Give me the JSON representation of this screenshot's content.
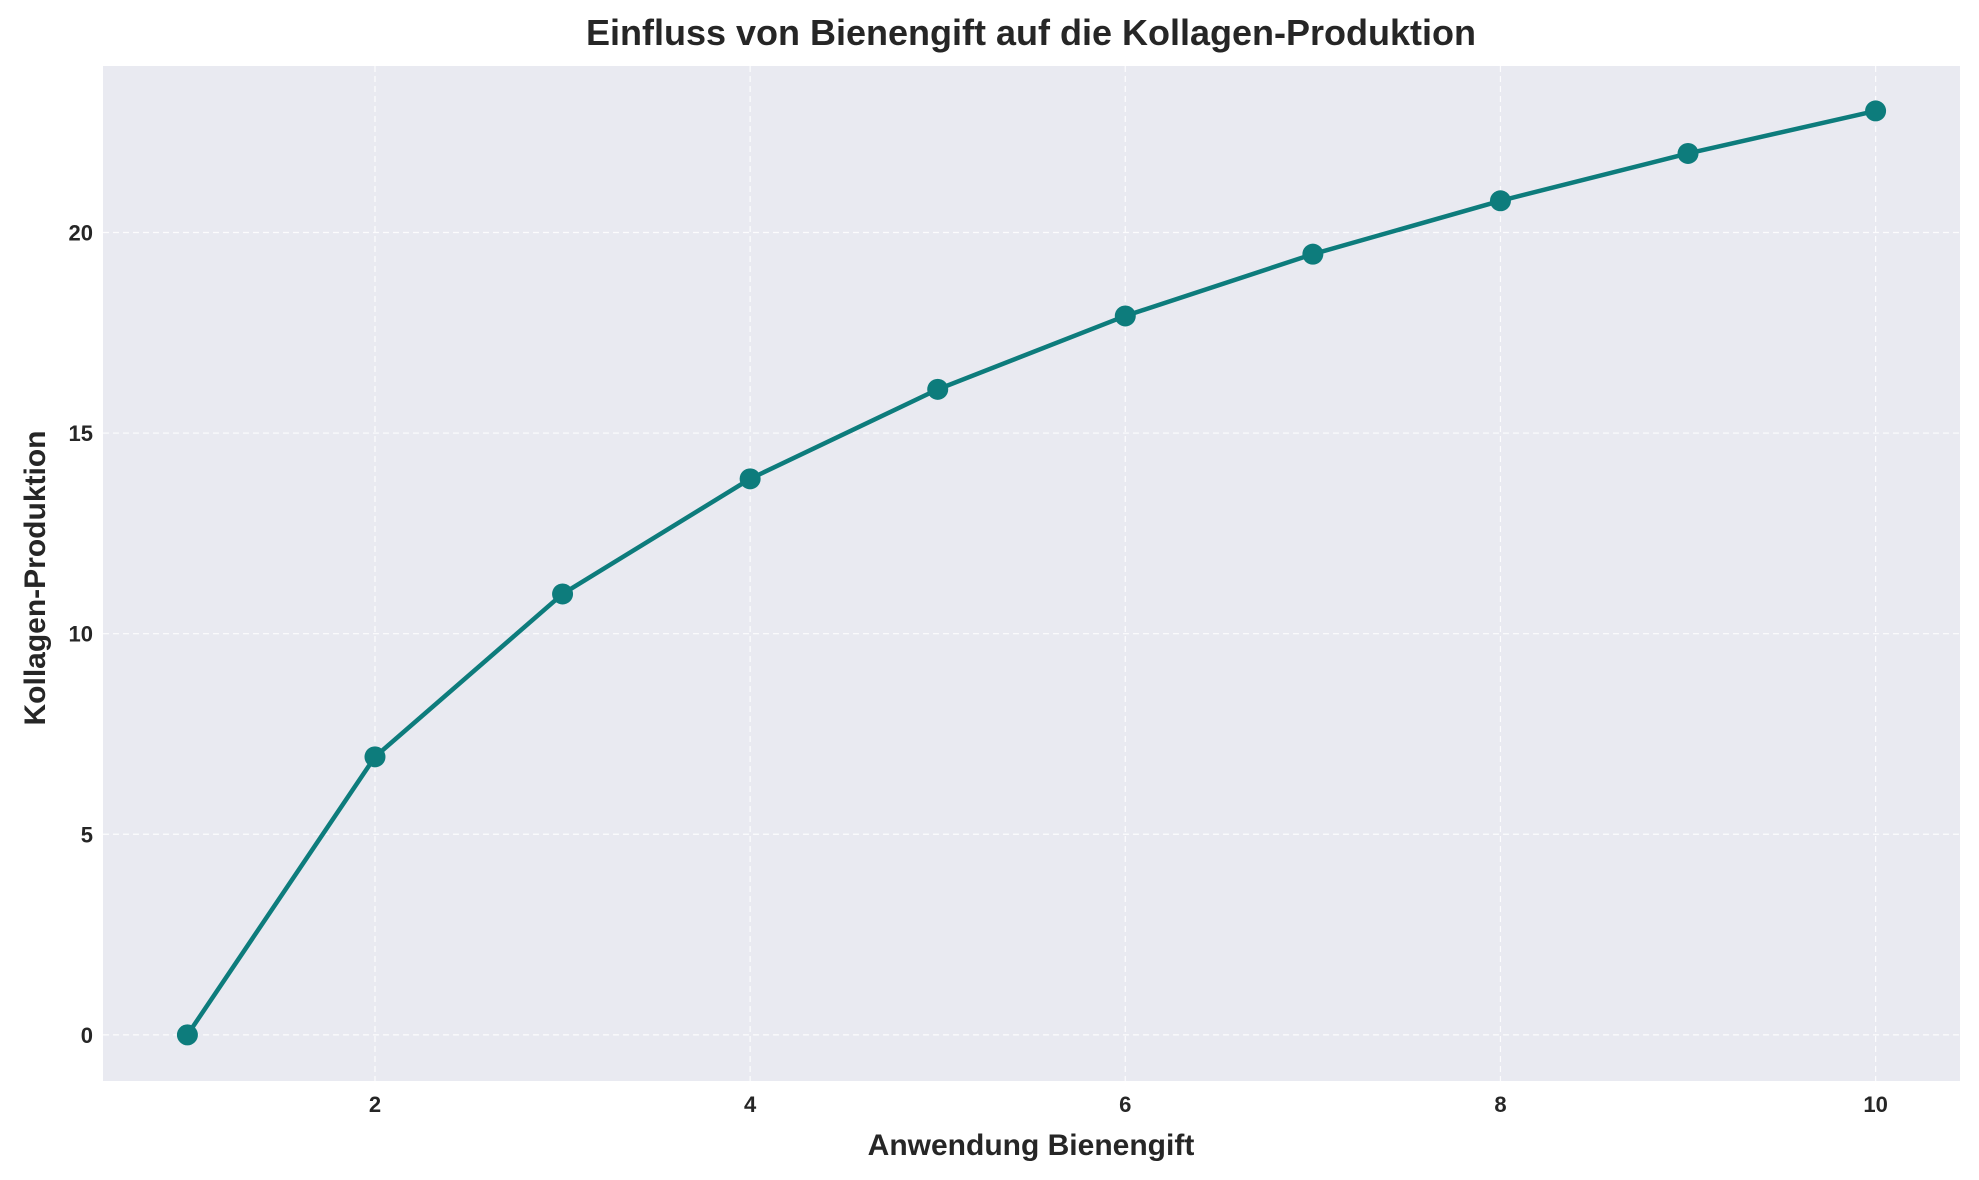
{
  "chart_data": {
    "type": "line",
    "title": "Einfluss von Bienengift auf die Kollagen-Produktion",
    "xlabel": "Anwendung Bienengift",
    "ylabel": "Kollagen-Produktion",
    "x": [
      1,
      2,
      3,
      4,
      5,
      6,
      7,
      8,
      9,
      10
    ],
    "series": [
      {
        "values": [
          0.0,
          6.93,
          10.99,
          13.86,
          16.09,
          17.92,
          19.46,
          20.79,
          21.97,
          23.03
        ]
      }
    ],
    "xlim": [
      0.55,
      10.45
    ],
    "ylim": [
      -1.15,
      24.15
    ],
    "xticks": [
      2,
      4,
      6,
      8,
      10
    ],
    "yticks": [
      0,
      5,
      10,
      15,
      20
    ],
    "grid": true,
    "colors": {
      "line": "#0d7c7c",
      "plot_background": "#e9eaf1",
      "grid": "#ffffff"
    }
  }
}
